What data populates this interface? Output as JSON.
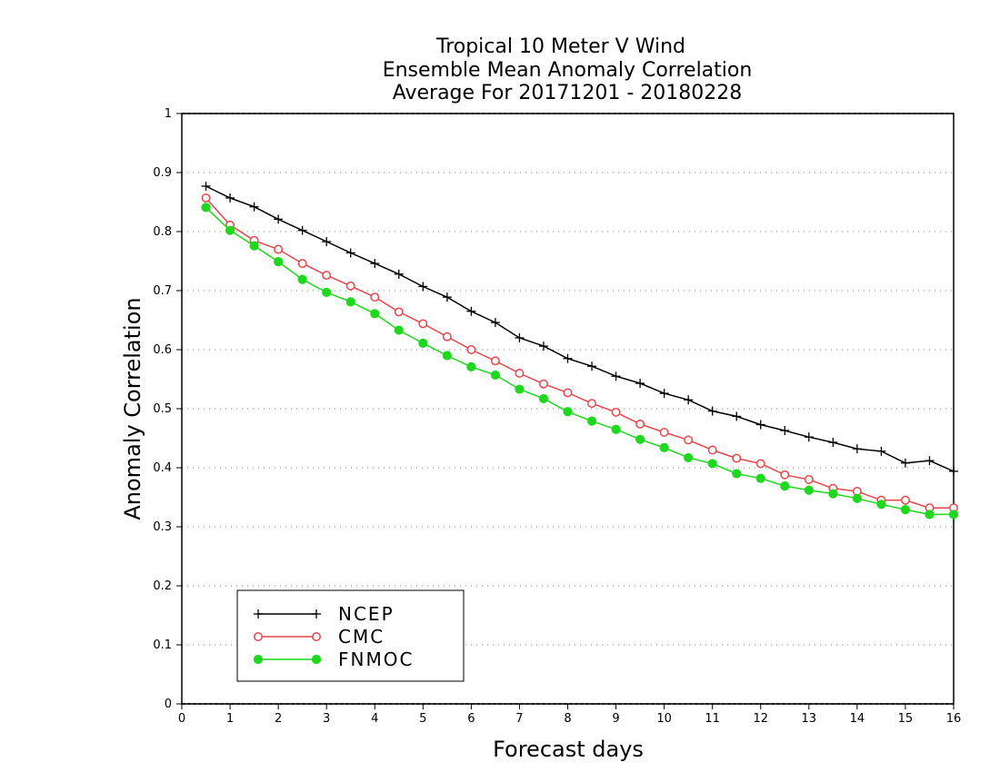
{
  "chart_data": {
    "type": "line",
    "title": [
      "Tropical 10 Meter V Wind",
      "Ensemble Mean Anomaly Correlation",
      "Average For 20171201 - 20180228"
    ],
    "xlabel": "Forecast days",
    "ylabel": "Anomaly Correlation",
    "xlim": [
      0,
      16
    ],
    "ylim": [
      0,
      1
    ],
    "xticks": [
      0,
      1,
      2,
      3,
      4,
      5,
      6,
      7,
      8,
      9,
      10,
      11,
      12,
      13,
      14,
      15,
      16
    ],
    "yticks": [
      0,
      0.1,
      0.2,
      0.3,
      0.4,
      0.5,
      0.6,
      0.7,
      0.8,
      0.9,
      1
    ],
    "grid": true,
    "legend_position": "bottom-left",
    "x": [
      0.5,
      1,
      1.5,
      2,
      2.5,
      3,
      3.5,
      4,
      4.5,
      5,
      5.5,
      6,
      6.5,
      7,
      7.5,
      8,
      8.5,
      9,
      9.5,
      10,
      10.5,
      11,
      11.5,
      12,
      12.5,
      13,
      13.5,
      14,
      14.5,
      15,
      15.5,
      16
    ],
    "series": [
      {
        "name": "NCEP",
        "color": "#000000",
        "marker": "plus",
        "values": [
          0.877,
          0.857,
          0.842,
          0.821,
          0.802,
          0.783,
          0.764,
          0.746,
          0.728,
          0.707,
          0.689,
          0.665,
          0.646,
          0.62,
          0.606,
          0.585,
          0.572,
          0.555,
          0.543,
          0.526,
          0.515,
          0.496,
          0.487,
          0.473,
          0.463,
          0.452,
          0.443,
          0.432,
          0.428,
          0.408,
          0.412,
          0.394
        ]
      },
      {
        "name": "CMC",
        "color": "#e8474a",
        "marker": "open-circle",
        "values": [
          0.857,
          0.811,
          0.785,
          0.77,
          0.746,
          0.726,
          0.708,
          0.689,
          0.664,
          0.644,
          0.622,
          0.6,
          0.581,
          0.56,
          0.542,
          0.527,
          0.509,
          0.494,
          0.474,
          0.46,
          0.447,
          0.43,
          0.416,
          0.407,
          0.388,
          0.38,
          0.365,
          0.36,
          0.345,
          0.345,
          0.332,
          0.332
        ]
      },
      {
        "name": "FNMOC",
        "color": "#1ed81e",
        "marker": "filled-circle",
        "values": [
          0.841,
          0.802,
          0.776,
          0.749,
          0.719,
          0.697,
          0.681,
          0.661,
          0.633,
          0.611,
          0.59,
          0.571,
          0.557,
          0.533,
          0.517,
          0.495,
          0.479,
          0.465,
          0.448,
          0.434,
          0.417,
          0.407,
          0.39,
          0.382,
          0.369,
          0.362,
          0.356,
          0.348,
          0.338,
          0.329,
          0.321,
          0.321
        ]
      }
    ]
  }
}
